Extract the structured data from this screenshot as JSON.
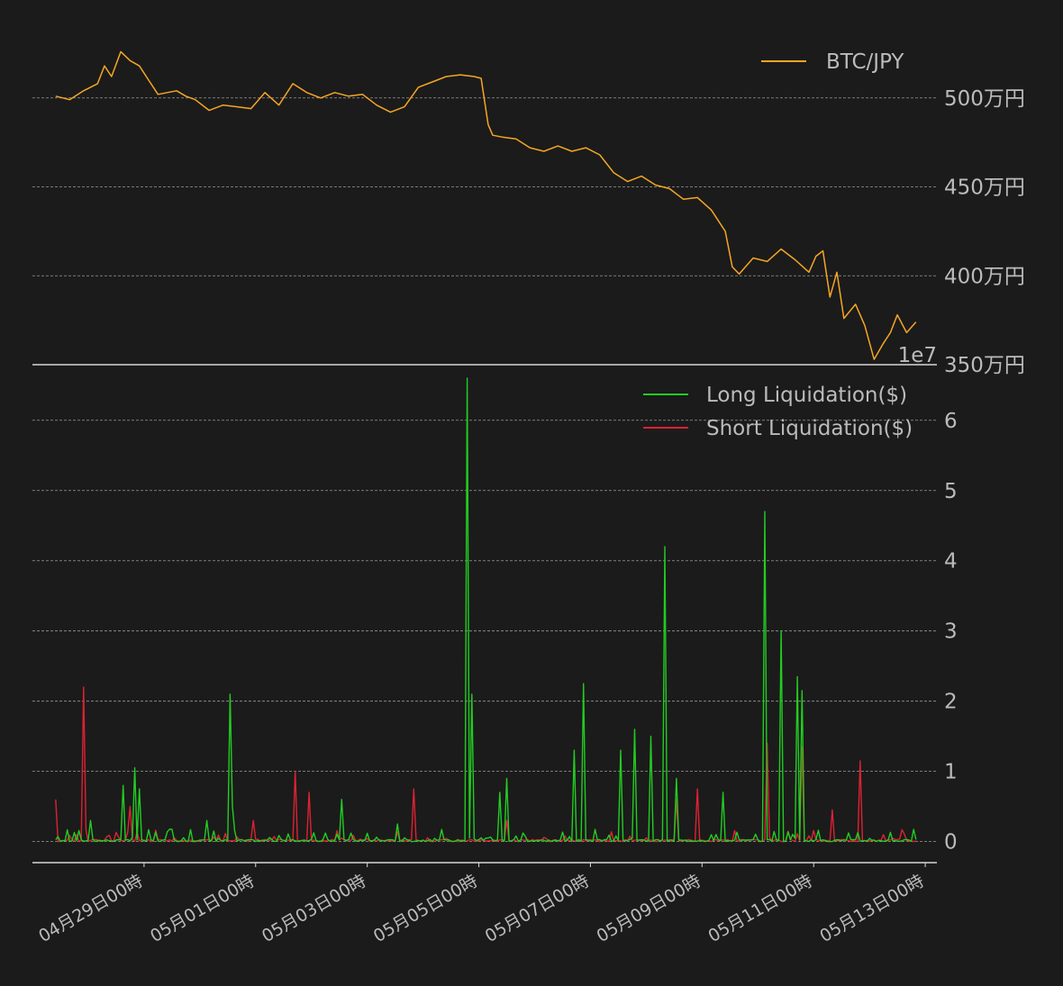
{
  "chart_data": [
    {
      "type": "line",
      "legend_position": "top-right",
      "grid": "horizontal dashed",
      "ylim": [
        3500000,
        5500000
      ],
      "y_ticks": [
        {
          "value": 3500000,
          "label": "350万円"
        },
        {
          "value": 4000000,
          "label": "400万円"
        },
        {
          "value": 4500000,
          "label": "450万円"
        },
        {
          "value": 5000000,
          "label": "500万円"
        }
      ],
      "series": [
        {
          "name": "BTC/JPY",
          "color": "#f5a623",
          "x": [
            "2022-04-27T10:00",
            "2022-04-27T16:00",
            "2022-04-27T22:00",
            "2022-04-28T04:00",
            "2022-04-28T07:00",
            "2022-04-28T10:00",
            "2022-04-28T14:00",
            "2022-04-28T18:00",
            "2022-04-28T22:00",
            "2022-04-29T02:00",
            "2022-04-29T06:00",
            "2022-04-29T10:00",
            "2022-04-29T14:00",
            "2022-04-29T18:00",
            "2022-04-29T22:00",
            "2022-04-30T04:00",
            "2022-04-30T10:00",
            "2022-04-30T16:00",
            "2022-04-30T22:00",
            "2022-05-01T04:00",
            "2022-05-01T10:00",
            "2022-05-01T16:00",
            "2022-05-01T22:00",
            "2022-05-02T04:00",
            "2022-05-02T10:00",
            "2022-05-02T16:00",
            "2022-05-02T22:00",
            "2022-05-03T04:00",
            "2022-05-03T10:00",
            "2022-05-03T16:00",
            "2022-05-03T22:00",
            "2022-05-04T04:00",
            "2022-05-04T10:00",
            "2022-05-04T16:00",
            "2022-05-04T22:00",
            "2022-05-05T01:00",
            "2022-05-05T04:00",
            "2022-05-05T06:00",
            "2022-05-05T10:00",
            "2022-05-05T16:00",
            "2022-05-05T22:00",
            "2022-05-06T04:00",
            "2022-05-06T10:00",
            "2022-05-06T16:00",
            "2022-05-06T22:00",
            "2022-05-07T04:00",
            "2022-05-07T10:00",
            "2022-05-07T16:00",
            "2022-05-07T22:00",
            "2022-05-08T04:00",
            "2022-05-08T10:00",
            "2022-05-08T16:00",
            "2022-05-08T22:00",
            "2022-05-09T04:00",
            "2022-05-09T10:00",
            "2022-05-09T13:00",
            "2022-05-09T16:00",
            "2022-05-09T22:00",
            "2022-05-10T04:00",
            "2022-05-10T10:00",
            "2022-05-10T16:00",
            "2022-05-10T22:00",
            "2022-05-11T01:00",
            "2022-05-11T04:00",
            "2022-05-11T07:00",
            "2022-05-11T10:00",
            "2022-05-11T13:00",
            "2022-05-11T18:00",
            "2022-05-11T22:00",
            "2022-05-12T02:00",
            "2022-05-12T06:00",
            "2022-05-12T09:00",
            "2022-05-12T12:00",
            "2022-05-12T16:00",
            "2022-05-12T20:00"
          ],
          "values": [
            5010000,
            4990000,
            5040000,
            5080000,
            5180000,
            5120000,
            5260000,
            5210000,
            5180000,
            5100000,
            5020000,
            5030000,
            5040000,
            5010000,
            4990000,
            4930000,
            4960000,
            4950000,
            4940000,
            5030000,
            4960000,
            5080000,
            5030000,
            5000000,
            5030000,
            5010000,
            5020000,
            4960000,
            4920000,
            4950000,
            5060000,
            5090000,
            5120000,
            5130000,
            5120000,
            5110000,
            4850000,
            4790000,
            4780000,
            4770000,
            4720000,
            4700000,
            4730000,
            4700000,
            4720000,
            4680000,
            4580000,
            4530000,
            4560000,
            4510000,
            4490000,
            4430000,
            4440000,
            4370000,
            4250000,
            4050000,
            4010000,
            4100000,
            4080000,
            4150000,
            4090000,
            4020000,
            4110000,
            4140000,
            3880000,
            4020000,
            3760000,
            3840000,
            3720000,
            3530000,
            3620000,
            3680000,
            3780000,
            3680000,
            3740000
          ]
        }
      ]
    },
    {
      "type": "line",
      "legend_position": "top-right",
      "grid": "horizontal dashed",
      "ylim": [
        -0.3,
        6.6
      ],
      "offset_text": "1e7",
      "y_ticks": [
        {
          "value": 0,
          "label": "0"
        },
        {
          "value": 1,
          "label": "1"
        },
        {
          "value": 2,
          "label": "2"
        },
        {
          "value": 3,
          "label": "3"
        },
        {
          "value": 4,
          "label": "4"
        },
        {
          "value": 5,
          "label": "5"
        },
        {
          "value": 6,
          "label": "6"
        }
      ],
      "xlim": [
        "2022-04-27T00:00",
        "2022-05-13T05:00"
      ],
      "x_ticks": [
        {
          "value": "2022-04-29T00:00",
          "label": "04月29日00時"
        },
        {
          "value": "2022-05-01T00:00",
          "label": "05月01日00時"
        },
        {
          "value": "2022-05-03T00:00",
          "label": "05月03日00時"
        },
        {
          "value": "2022-05-05T00:00",
          "label": "05月05日00時"
        },
        {
          "value": "2022-05-07T00:00",
          "label": "05月07日00時"
        },
        {
          "value": "2022-05-09T00:00",
          "label": "05月09日00時"
        },
        {
          "value": "2022-05-11T00:00",
          "label": "05月11日00時"
        },
        {
          "value": "2022-05-13T00:00",
          "label": "05月13日00時"
        }
      ],
      "series": [
        {
          "name": "Long Liquidation($)",
          "color": "#22cc22",
          "points": [
            {
              "x": "2022-04-28T01:00",
              "y": 0.3
            },
            {
              "x": "2022-04-28T15:00",
              "y": 0.8
            },
            {
              "x": "2022-04-28T20:00",
              "y": 1.05
            },
            {
              "x": "2022-04-28T22:00",
              "y": 0.75
            },
            {
              "x": "2022-04-30T03:00",
              "y": 0.3
            },
            {
              "x": "2022-04-30T13:00",
              "y": 2.1
            },
            {
              "x": "2022-04-30T14:00",
              "y": 0.5
            },
            {
              "x": "2022-05-02T13:00",
              "y": 0.6
            },
            {
              "x": "2022-05-03T13:00",
              "y": 0.25
            },
            {
              "x": "2022-05-04T19:00",
              "y": 6.6
            },
            {
              "x": "2022-05-04T21:00",
              "y": 2.1
            },
            {
              "x": "2022-05-05T09:00",
              "y": 0.7
            },
            {
              "x": "2022-05-05T12:00",
              "y": 0.9
            },
            {
              "x": "2022-05-06T17:00",
              "y": 1.3
            },
            {
              "x": "2022-05-06T21:00",
              "y": 2.25
            },
            {
              "x": "2022-05-07T13:00",
              "y": 1.3
            },
            {
              "x": "2022-05-07T19:00",
              "y": 1.6
            },
            {
              "x": "2022-05-08T02:00",
              "y": 1.5
            },
            {
              "x": "2022-05-08T08:00",
              "y": 4.2
            },
            {
              "x": "2022-05-08T13:00",
              "y": 0.9
            },
            {
              "x": "2022-05-09T09:00",
              "y": 0.7
            },
            {
              "x": "2022-05-10T03:00",
              "y": 4.7
            },
            {
              "x": "2022-05-10T10:00",
              "y": 3.0
            },
            {
              "x": "2022-05-10T17:00",
              "y": 2.35
            },
            {
              "x": "2022-05-10T19:00",
              "y": 2.15
            }
          ]
        },
        {
          "name": "Short Liquidation($)",
          "color": "#dd2233",
          "points": [
            {
              "x": "2022-04-27T10:00",
              "y": 0.6
            },
            {
              "x": "2022-04-27T22:00",
              "y": 2.2
            },
            {
              "x": "2022-04-28T18:00",
              "y": 0.5
            },
            {
              "x": "2022-04-30T23:00",
              "y": 0.3
            },
            {
              "x": "2022-05-01T17:00",
              "y": 1.0
            },
            {
              "x": "2022-05-01T23:00",
              "y": 0.7
            },
            {
              "x": "2022-05-03T20:00",
              "y": 0.75
            },
            {
              "x": "2022-05-05T12:00",
              "y": 0.3
            },
            {
              "x": "2022-05-08T13:00",
              "y": 0.6
            },
            {
              "x": "2022-05-08T22:00",
              "y": 0.75
            },
            {
              "x": "2022-05-10T04:00",
              "y": 1.4
            },
            {
              "x": "2022-05-10T19:00",
              "y": 1.35
            },
            {
              "x": "2022-05-11T08:00",
              "y": 0.45
            },
            {
              "x": "2022-05-11T20:00",
              "y": 1.15
            }
          ]
        }
      ]
    }
  ]
}
